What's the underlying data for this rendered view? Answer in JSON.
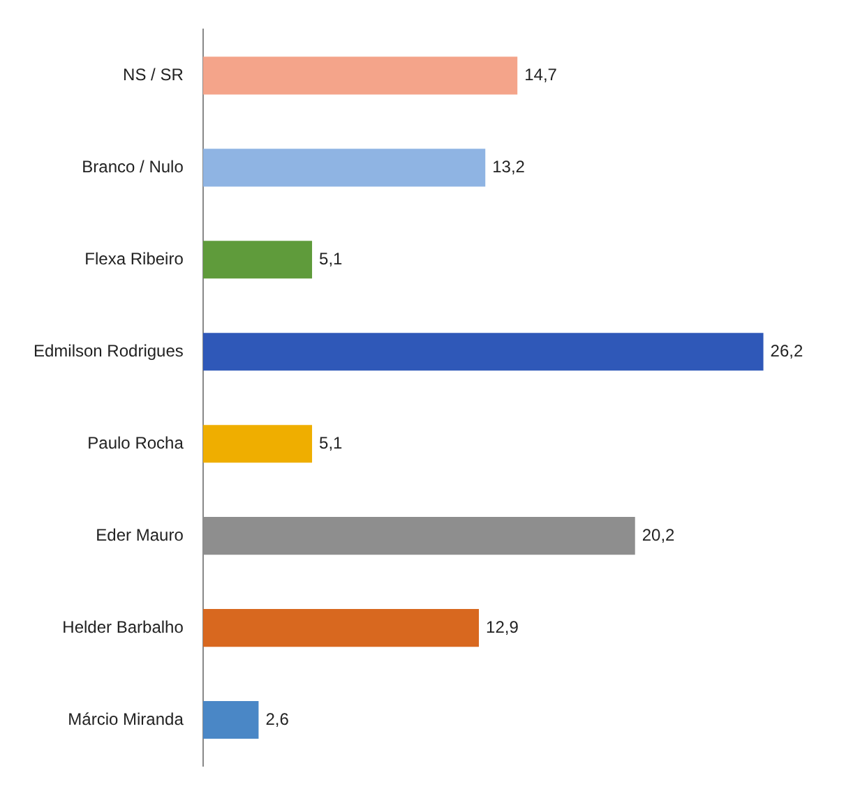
{
  "chart_data": {
    "type": "bar",
    "orientation": "horizontal",
    "categories": [
      "NS / SR",
      "Branco / Nulo",
      "Flexa Ribeiro",
      "Edmilson Rodrigues",
      "Paulo Rocha",
      "Eder Mauro",
      "Helder Barbalho",
      "Márcio Miranda"
    ],
    "values": [
      14.7,
      13.2,
      5.1,
      26.2,
      5.1,
      20.2,
      12.9,
      2.6
    ],
    "colors": [
      "#f4a48a",
      "#8fb4e3",
      "#5f9b3b",
      "#2f58b8",
      "#efae00",
      "#8e8e8e",
      "#d8681f",
      "#4a87c6"
    ],
    "value_labels": [
      "14,7",
      "13,2",
      "5,1",
      "26,2",
      "5,1",
      "20,2",
      "12,9",
      "2,6"
    ],
    "legend": false,
    "grid": false
  }
}
